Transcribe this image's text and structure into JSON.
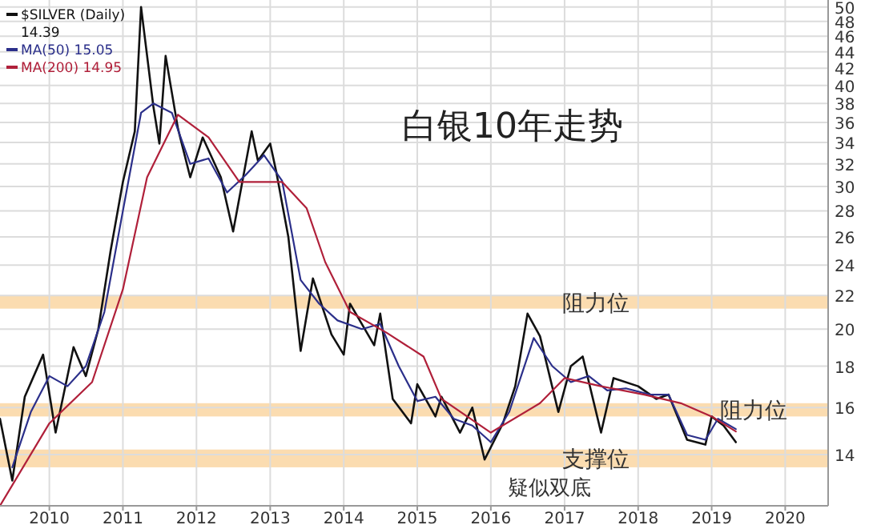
{
  "chart_data": {
    "type": "line",
    "title": "白银10年走势",
    "log": "y",
    "grid": true,
    "legend": "top left",
    "xlim": [
      "2009-05",
      "2020-08"
    ],
    "xticks": [
      {
        "value": "2010",
        "label": "2010"
      },
      {
        "value": "2011",
        "label": "2011"
      },
      {
        "value": "2012",
        "label": "2012"
      },
      {
        "value": "2013",
        "label": "2013"
      },
      {
        "value": "2014",
        "label": "2014"
      },
      {
        "value": "2015",
        "label": "2015"
      },
      {
        "value": "2016",
        "label": "2016"
      },
      {
        "value": "2017",
        "label": "2017"
      },
      {
        "value": "2018",
        "label": "2018"
      },
      {
        "value": "2019",
        "label": "2019"
      },
      {
        "value": "2020",
        "label": "2020"
      }
    ],
    "ylim": [
      12.1,
      51
    ],
    "yticks": [
      14,
      16,
      18,
      20,
      22,
      24,
      26,
      28,
      30,
      32,
      34,
      36,
      38,
      40,
      42,
      44,
      46,
      48,
      50
    ],
    "bands": [
      {
        "axis": "y",
        "from": 21.2,
        "to": 22,
        "label": "阻力位",
        "color": "#fbdcb0"
      },
      {
        "axis": "y",
        "from": 15.6,
        "to": 16.2,
        "label": "阻力位",
        "color": "#fbdcb0"
      },
      {
        "axis": "y",
        "from": 13.5,
        "to": 14.2,
        "label": "支撑位",
        "color": "#fbdcb0"
      }
    ],
    "annotations": [
      "疑似双底"
    ],
    "series": [
      {
        "name": "$SILVER (Daily) 14.39",
        "color": "#111111",
        "x": [
          "2009-05",
          "2009-07",
          "2009-09",
          "2009-12",
          "2010-02",
          "2010-05",
          "2010-07",
          "2010-09",
          "2010-11",
          "2011-01",
          "2011-03",
          "2011-04",
          "2011-06",
          "2011-07",
          "2011-08",
          "2011-10",
          "2011-12",
          "2012-02",
          "2012-05",
          "2012-07",
          "2012-10",
          "2012-11",
          "2013-01",
          "2013-02",
          "2013-04",
          "2013-06",
          "2013-08",
          "2013-11",
          "2014-01",
          "2014-02",
          "2014-06",
          "2014-07",
          "2014-09",
          "2014-12",
          "2015-01",
          "2015-04",
          "2015-05",
          "2015-08",
          "2015-10",
          "2015-12",
          "2016-03",
          "2016-05",
          "2016-07",
          "2016-09",
          "2016-12",
          "2017-02",
          "2017-04",
          "2017-07",
          "2017-09",
          "2018-01",
          "2018-04",
          "2018-06",
          "2018-09",
          "2018-12",
          "2019-01",
          "2019-03",
          "2019-05"
        ],
        "values": [
          15.5,
          13.0,
          16.5,
          18.6,
          14.9,
          19.0,
          17.5,
          20.0,
          25.0,
          30.4,
          35.1,
          50.0,
          37.7,
          33.9,
          43.5,
          35.4,
          30.8,
          34.5,
          30.8,
          26.4,
          35.1,
          32.3,
          33.9,
          31.2,
          26.0,
          18.8,
          23.1,
          19.7,
          18.6,
          21.5,
          19.1,
          20.9,
          16.4,
          15.3,
          17.1,
          15.6,
          16.5,
          14.9,
          16.0,
          13.8,
          15.3,
          17.0,
          20.9,
          19.6,
          15.8,
          18.0,
          18.5,
          14.9,
          17.4,
          17.0,
          16.4,
          16.6,
          14.6,
          14.4,
          15.6,
          15.2,
          14.5
        ]
      },
      {
        "name": "MA(50) 15.05",
        "color": "#2b2f8a",
        "x": [
          "2009-07",
          "2009-10",
          "2010-01",
          "2010-04",
          "2010-07",
          "2010-10",
          "2011-01",
          "2011-04",
          "2011-06",
          "2011-09",
          "2011-12",
          "2012-03",
          "2012-06",
          "2012-09",
          "2012-12",
          "2013-03",
          "2013-06",
          "2013-09",
          "2013-12",
          "2014-04",
          "2014-07",
          "2014-10",
          "2015-01",
          "2015-04",
          "2015-07",
          "2015-10",
          "2016-01",
          "2016-04",
          "2016-08",
          "2016-11",
          "2017-02",
          "2017-05",
          "2017-08",
          "2017-11",
          "2018-03",
          "2018-06",
          "2018-09",
          "2018-12",
          "2019-02",
          "2019-05"
        ],
        "values": [
          13.5,
          15.8,
          17.5,
          17.0,
          18.0,
          21.0,
          28.0,
          37.0,
          38.0,
          37.0,
          32.0,
          32.5,
          29.5,
          31.0,
          32.8,
          30.5,
          23.0,
          21.5,
          20.5,
          20.0,
          20.3,
          18.0,
          16.3,
          16.5,
          15.5,
          15.2,
          14.5,
          15.8,
          19.5,
          18.0,
          17.2,
          17.5,
          16.8,
          16.9,
          16.6,
          16.6,
          14.8,
          14.6,
          15.5,
          15.05
        ]
      },
      {
        "name": "MA(200) 14.95",
        "color": "#b0203a",
        "x": [
          "2009-05",
          "2010-01",
          "2010-08",
          "2011-01",
          "2011-05",
          "2011-10",
          "2012-03",
          "2012-08",
          "2013-03",
          "2013-07",
          "2013-10",
          "2014-02",
          "2014-08",
          "2015-02",
          "2015-05",
          "2016-01",
          "2016-09",
          "2017-01",
          "2017-07",
          "2018-02",
          "2018-08",
          "2019-01",
          "2019-05"
        ],
        "values": [
          12.1,
          15.3,
          17.2,
          22.4,
          30.8,
          36.8,
          34.5,
          30.4,
          30.4,
          28.2,
          24.2,
          21.0,
          19.8,
          18.5,
          16.4,
          14.9,
          16.2,
          17.4,
          17.0,
          16.6,
          16.2,
          15.6,
          14.95
        ]
      }
    ]
  }
}
